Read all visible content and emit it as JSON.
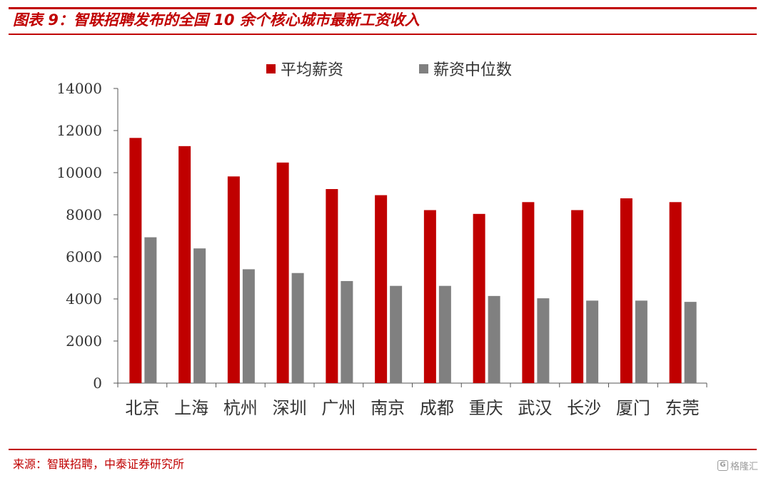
{
  "header": {
    "title": "图表 9：智联招聘发布的全国 10 余个核心城市最新工资收入"
  },
  "footer": {
    "source": "来源：智联招聘，中泰证券研究所",
    "watermark": "格隆汇"
  },
  "colors": {
    "accent": "#c00000",
    "series": [
      "#c00000",
      "#808080"
    ],
    "axis": "#555555",
    "text": "#333333"
  },
  "chart_data": {
    "type": "bar",
    "title": "",
    "xlabel": "",
    "ylabel": "",
    "ylim": [
      0,
      14000
    ],
    "yticks": [
      0,
      2000,
      4000,
      6000,
      8000,
      10000,
      12000,
      14000
    ],
    "grid": false,
    "legend_position": "top",
    "categories": [
      "北京",
      "上海",
      "杭州",
      "深圳",
      "广州",
      "南京",
      "成都",
      "重庆",
      "武汉",
      "长沙",
      "厦门",
      "东莞"
    ],
    "series": [
      {
        "name": "平均薪资",
        "color": "#c00000",
        "values": [
          11650,
          11260,
          9820,
          10480,
          9220,
          8930,
          8220,
          8040,
          8600,
          8220,
          8780,
          8600
        ]
      },
      {
        "name": "薪资中位数",
        "color": "#808080",
        "values": [
          6930,
          6400,
          5410,
          5230,
          4850,
          4620,
          4620,
          4140,
          4030,
          3920,
          3920,
          3860
        ]
      }
    ]
  }
}
